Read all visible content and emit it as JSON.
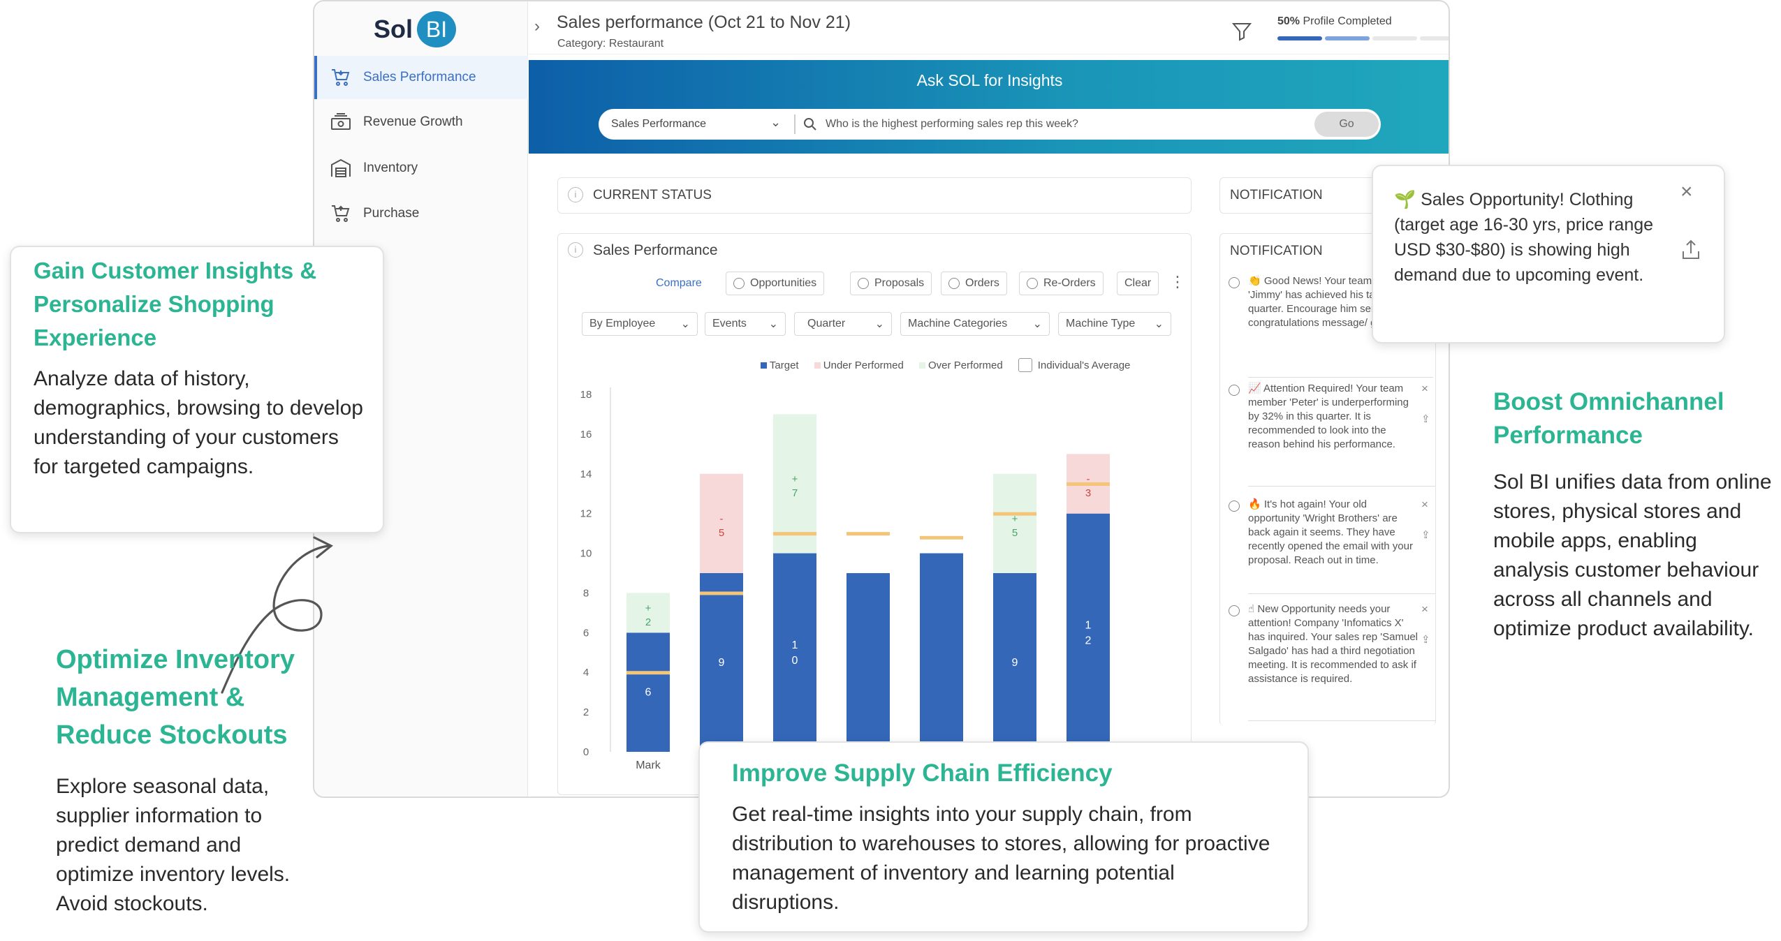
{
  "app": {
    "logo": {
      "sol": "Sol",
      "bi": "BI"
    },
    "sidebar": [
      {
        "label": "Sales Performance",
        "active": true,
        "icon": "cart-icon"
      },
      {
        "label": "Revenue Growth",
        "active": false,
        "icon": "money-icon"
      },
      {
        "label": "Inventory",
        "active": false,
        "icon": "warehouse-icon"
      },
      {
        "label": "Purchase",
        "active": false,
        "icon": "cart-icon"
      }
    ],
    "header": {
      "title": "Sales performance (Oct 21 to Nov 21)",
      "category": "Category: Restaurant",
      "profile_pct": "50%",
      "profile_label": "Profile Completed",
      "profile_value": 0.5
    },
    "banner": {
      "title": "Ask SOL for Insights",
      "select_value": "Sales Performance",
      "search_placeholder": "Who is the highest performing sales rep this week?",
      "go_label": "Go"
    },
    "status_panel": {
      "title": "CURRENT STATUS"
    },
    "notification_header": "NOTIFICATION",
    "sales_panel": {
      "title": "Sales Performance",
      "compare_label": "Compare",
      "compare_options": [
        "Opportunities",
        "Proposals",
        "Orders",
        "Re-Orders"
      ],
      "clear_label": "Clear",
      "filters": [
        "By Employee",
        "Events",
        "Quarter",
        "Machine Categories",
        "Machine Type"
      ]
    },
    "notifications_title": "NOTIFICATION",
    "notifications": [
      {
        "emoji": "👏",
        "text": "Good News! Your team member 'Jimmy' has achieved his targets for quarter. Encourage him sending a congratulations message/ greeting."
      },
      {
        "emoji": "📈",
        "text": "Attention Required! Your team member 'Peter' is underperforming by 32% in this quarter. It is recommended to look into the reason behind his performance."
      },
      {
        "emoji": "🔥",
        "text": "It's hot again! Your old opportunity 'Wright Brothers' are back again it seems. They have recently opened the email with your proposal. Reach out in time."
      },
      {
        "emoji": "☝",
        "text": "New Opportunity needs your attention! Company 'Infomatics X' has inquired. Your sales rep 'Samuel Salgado' has had a third negotiation meeting. It is recommended to ask if assistance is required."
      }
    ],
    "popup": {
      "emoji": "🌱",
      "text": "Sales Opportunity! Clothing (target age 16-30 yrs, price range USD $30-$80) is showing high demand due to upcoming event."
    }
  },
  "chart_data": {
    "type": "bar",
    "legend": [
      "Target",
      "Under Performed",
      "Over Performed",
      "Individual's Average"
    ],
    "ylim": [
      0,
      18
    ],
    "yticks": [
      0,
      2,
      4,
      6,
      8,
      10,
      12,
      14,
      16,
      18
    ],
    "categories": [
      "Mark",
      "",
      "",
      "",
      "",
      "",
      ""
    ],
    "colors": {
      "target": "#3567b8",
      "under": "#f7d9d9",
      "over": "#e4f4e7",
      "average": "#f4c478"
    },
    "bars": [
      {
        "actual": 6,
        "delta": 2,
        "kind": "over",
        "target_line": 4,
        "average_line": null,
        "label": "6",
        "delta_label": "+\n2"
      },
      {
        "actual": 9,
        "delta": 5,
        "kind": "under",
        "target_line": 8,
        "average_line": null,
        "label": "9",
        "delta_label": "-\n5"
      },
      {
        "actual": 10,
        "delta": 7,
        "kind": "over",
        "target_line": 11,
        "average_line": null,
        "label": "1\n0",
        "delta_label": "+\n7"
      },
      {
        "actual": 9,
        "delta": 0,
        "kind": "none",
        "target_line": 11,
        "average_line": null,
        "label": "",
        "delta_label": ""
      },
      {
        "actual": 10,
        "delta": 0,
        "kind": "none",
        "target_line": 10.8,
        "average_line": null,
        "label": "",
        "delta_label": ""
      },
      {
        "actual": 9,
        "delta": 5,
        "kind": "over",
        "target_line": 12,
        "average_line": null,
        "label": "9",
        "delta_label": "+\n5"
      },
      {
        "actual": 12,
        "delta": 3,
        "kind": "under",
        "target_line": 13.5,
        "average_line": null,
        "label": "1\n2",
        "delta_label": "-\n3"
      }
    ]
  },
  "cards": {
    "customer": {
      "title": "Gain Customer Insights & Personalize Shopping Experience",
      "body": "Analyze data of history, demographics, browsing to develop understanding of your customers for targeted campaigns."
    },
    "inventory": {
      "title": "Optimize Inventory Management & Reduce Stockouts",
      "body": "Explore seasonal data, supplier information to predict demand and optimize inventory levels. Avoid stockouts."
    },
    "supply": {
      "title": "Improve Supply Chain Efficiency",
      "body": "Get real-time insights into your supply chain, from distribution to warehouses to stores, allowing for proactive management of inventory and learning potential disruptions."
    },
    "omni": {
      "title": "Boost Omnichannel Performance",
      "body": "Sol BI unifies data from online stores, physical stores and mobile apps, enabling analysis customer behaviour across all channels and optimize product availability."
    }
  }
}
